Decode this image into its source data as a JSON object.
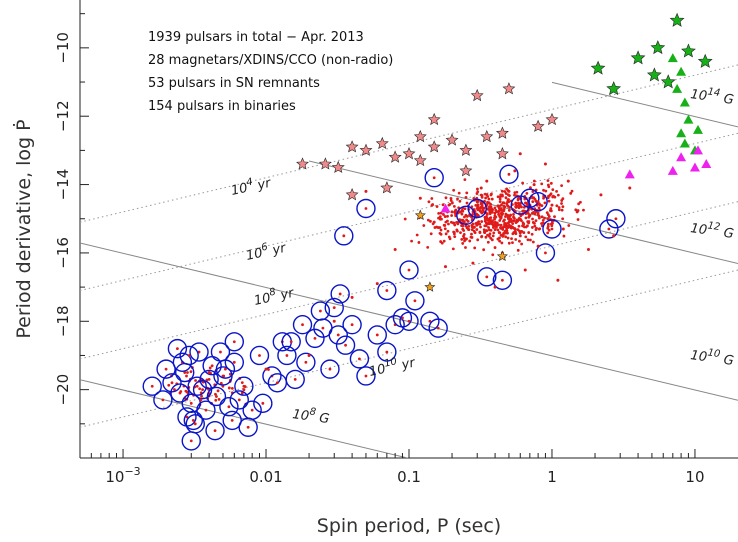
{
  "chart_data": {
    "type": "scatter",
    "title": "",
    "xlabel": "Spin period,  P (sec)",
    "ylabel": "Period derivative, log Ṗ",
    "x_scale": "log",
    "xlim": [
      0.0005,
      20
    ],
    "ylim": [
      -22,
      -8.6
    ],
    "x_ticks": [
      {
        "value": 0.001,
        "base": "10",
        "exp": "−3"
      },
      {
        "value": 0.01,
        "label": "0.01"
      },
      {
        "value": 0.1,
        "label": "0.1"
      },
      {
        "value": 1,
        "label": "1"
      },
      {
        "value": 10,
        "label": "10"
      }
    ],
    "y_ticks": [
      -10,
      -12,
      -14,
      -16,
      -18,
      -20
    ],
    "y_tick_labels": [
      "−10",
      "−12",
      "−14",
      "−16",
      "−18",
      "−20"
    ],
    "grid": false,
    "annotations": [
      "1939 pulsars in total − Apr. 2013",
      "28 magnetars/XDINS/CCO (non-radio)",
      "53 pulsars in SN remnants",
      "154 pulsars in binaries"
    ],
    "age_lines": [
      {
        "base": "10",
        "exp": "4",
        "unit": "yr",
        "log_age_yr": 4
      },
      {
        "base": "10",
        "exp": "6",
        "unit": "yr",
        "log_age_yr": 6
      },
      {
        "base": "10",
        "exp": "8",
        "unit": "yr",
        "log_age_yr": 8
      },
      {
        "base": "10",
        "exp": "10",
        "unit": "yr",
        "log_age_yr": 10
      }
    ],
    "field_lines": [
      {
        "base": "10",
        "exp": "14",
        "unit": "G",
        "log_B": 14
      },
      {
        "base": "10",
        "exp": "12",
        "unit": "G",
        "log_B": 12
      },
      {
        "base": "10",
        "exp": "10",
        "unit": "G",
        "log_B": 10
      },
      {
        "base": "10",
        "exp": "8",
        "unit": "G",
        "log_B": 8
      }
    ],
    "series": [
      {
        "marker": "circle",
        "points": [
          [
            0.0022,
            -19.8
          ],
          [
            0.0025,
            -20.1
          ],
          [
            0.0027,
            -19.5
          ],
          [
            0.003,
            -20.4
          ],
          [
            0.0033,
            -19.9
          ],
          [
            0.0036,
            -20.0
          ],
          [
            0.004,
            -19.7
          ],
          [
            0.0045,
            -20.2
          ],
          [
            0.005,
            -19.6
          ],
          [
            0.0055,
            -20.5
          ],
          [
            0.006,
            -19.2
          ],
          [
            0.007,
            -19.9
          ],
          [
            0.0028,
            -20.8
          ],
          [
            0.0032,
            -21.0
          ],
          [
            0.0038,
            -20.6
          ],
          [
            0.0042,
            -19.3
          ],
          [
            0.0048,
            -18.9
          ],
          [
            0.0052,
            -19.4
          ],
          [
            0.0065,
            -20.3
          ],
          [
            0.008,
            -20.6
          ],
          [
            0.0026,
            -19.2
          ],
          [
            0.0034,
            -18.9
          ],
          [
            0.0016,
            -19.9
          ],
          [
            0.0019,
            -20.3
          ],
          [
            0.002,
            -19.4
          ],
          [
            0.0024,
            -18.8
          ],
          [
            0.0029,
            -19.0
          ],
          [
            0.0031,
            -20.9
          ],
          [
            0.0044,
            -21.2
          ],
          [
            0.0058,
            -20.9
          ],
          [
            0.009,
            -19.0
          ],
          [
            0.011,
            -19.6
          ],
          [
            0.013,
            -18.6
          ],
          [
            0.016,
            -19.7
          ],
          [
            0.019,
            -19.2
          ],
          [
            0.022,
            -18.5
          ],
          [
            0.025,
            -18.2
          ],
          [
            0.028,
            -19.4
          ],
          [
            0.03,
            -17.6
          ],
          [
            0.033,
            -17.2
          ],
          [
            0.036,
            -18.7
          ],
          [
            0.04,
            -18.1
          ],
          [
            0.045,
            -19.1
          ],
          [
            0.05,
            -19.6
          ],
          [
            0.06,
            -18.4
          ],
          [
            0.07,
            -18.9
          ],
          [
            0.08,
            -18.1
          ],
          [
            0.09,
            -17.9
          ],
          [
            0.1,
            -18.0
          ],
          [
            0.11,
            -17.4
          ],
          [
            0.14,
            -18.0
          ],
          [
            0.16,
            -18.2
          ],
          [
            0.035,
            -15.5
          ],
          [
            0.05,
            -14.7
          ],
          [
            0.1,
            -16.5
          ],
          [
            0.07,
            -17.1
          ],
          [
            0.15,
            -13.8
          ],
          [
            0.25,
            -14.9
          ],
          [
            0.35,
            -16.7
          ],
          [
            0.45,
            -16.8
          ],
          [
            0.6,
            -14.6
          ],
          [
            0.7,
            -14.4
          ],
          [
            0.9,
            -16.0
          ],
          [
            1.0,
            -15.3
          ],
          [
            0.5,
            -13.7
          ],
          [
            2.5,
            -15.3
          ],
          [
            2.8,
            -15.0
          ],
          [
            0.3,
            -14.7
          ],
          [
            0.8,
            -14.5
          ],
          [
            0.015,
            -18.6
          ],
          [
            0.018,
            -18.1
          ],
          [
            0.024,
            -17.7
          ],
          [
            0.032,
            -18.4
          ],
          [
            0.012,
            -19.8
          ],
          [
            0.014,
            -19.0
          ],
          [
            0.006,
            -18.6
          ],
          [
            0.0095,
            -20.4
          ],
          [
            0.0075,
            -21.1
          ],
          [
            0.003,
            -21.5
          ]
        ]
      },
      {
        "marker": "dot",
        "points": [
          [
            0.2,
            -14.8
          ],
          [
            0.3,
            -14.5
          ],
          [
            0.4,
            -15.2
          ],
          [
            0.5,
            -14.2
          ],
          [
            0.6,
            -15.5
          ],
          [
            0.7,
            -14.9
          ],
          [
            0.8,
            -15.8
          ],
          [
            1.0,
            -14.6
          ],
          [
            1.2,
            -15.3
          ],
          [
            1.5,
            -14.8
          ],
          [
            0.25,
            -15.6
          ],
          [
            0.35,
            -13.9
          ],
          [
            0.45,
            -16.0
          ],
          [
            0.55,
            -13.6
          ],
          [
            0.9,
            -13.4
          ],
          [
            1.8,
            -15.9
          ],
          [
            2.2,
            -14.3
          ],
          [
            0.15,
            -15.1
          ],
          [
            0.28,
            -16.3
          ],
          [
            0.65,
            -16.5
          ],
          [
            1.1,
            -16.8
          ],
          [
            0.4,
            -17.0
          ],
          [
            0.32,
            -14.1
          ],
          [
            0.75,
            -14.0
          ],
          [
            0.12,
            -14.4
          ],
          [
            0.08,
            -15.9
          ],
          [
            0.06,
            -16.9
          ],
          [
            0.05,
            -14.2
          ],
          [
            0.04,
            -17.3
          ],
          [
            0.03,
            -18.0
          ],
          [
            0.02,
            -19.0
          ],
          [
            0.01,
            -19.4
          ],
          [
            0.007,
            -20.0
          ],
          [
            0.004,
            -19.5
          ],
          [
            0.0035,
            -20.3
          ],
          [
            0.6,
            -13.1
          ],
          [
            1.3,
            -13.9
          ],
          [
            2.7,
            -15.5
          ],
          [
            3.5,
            -14.1
          ],
          [
            0.18,
            -16.4
          ]
        ]
      },
      {
        "marker": "star-pink",
        "points": [
          [
            0.018,
            -13.4
          ],
          [
            0.026,
            -13.4
          ],
          [
            0.032,
            -13.5
          ],
          [
            0.04,
            -12.9
          ],
          [
            0.05,
            -13.0
          ],
          [
            0.065,
            -12.8
          ],
          [
            0.08,
            -13.2
          ],
          [
            0.1,
            -13.1
          ],
          [
            0.12,
            -13.3
          ],
          [
            0.15,
            -12.9
          ],
          [
            0.2,
            -12.7
          ],
          [
            0.25,
            -13.0
          ],
          [
            0.3,
            -11.4
          ],
          [
            0.35,
            -12.6
          ],
          [
            0.45,
            -13.1
          ],
          [
            0.5,
            -11.2
          ],
          [
            0.8,
            -12.3
          ],
          [
            1.0,
            -12.1
          ],
          [
            0.15,
            -12.1
          ],
          [
            0.07,
            -14.1
          ],
          [
            0.04,
            -14.3
          ],
          [
            0.25,
            -13.6
          ],
          [
            0.12,
            -12.6
          ],
          [
            0.45,
            -12.5
          ]
        ]
      },
      {
        "marker": "star-orange",
        "points": [
          [
            0.12,
            -14.9
          ],
          [
            0.45,
            -16.1
          ],
          [
            0.14,
            -17.0
          ]
        ]
      },
      {
        "marker": "star-green",
        "points": [
          [
            2.1,
            -10.6
          ],
          [
            2.7,
            -11.2
          ],
          [
            4.0,
            -10.3
          ],
          [
            5.5,
            -10.0
          ],
          [
            6.5,
            -11.0
          ],
          [
            7.5,
            -9.2
          ],
          [
            9.0,
            -10.1
          ],
          [
            11.8,
            -10.4
          ],
          [
            5.2,
            -10.8
          ]
        ]
      },
      {
        "marker": "triangle-green",
        "points": [
          [
            7.0,
            -10.3
          ],
          [
            8.0,
            -10.7
          ],
          [
            7.5,
            -11.2
          ],
          [
            8.5,
            -11.6
          ],
          [
            10.5,
            -12.4
          ],
          [
            8.0,
            -12.5
          ],
          [
            8.5,
            -12.8
          ],
          [
            10.0,
            -13.0
          ],
          [
            9.0,
            -12.1
          ]
        ]
      },
      {
        "marker": "triangle-magenta",
        "points": [
          [
            3.5,
            -13.7
          ],
          [
            7.0,
            -13.6
          ],
          [
            8.0,
            -13.2
          ],
          [
            10.5,
            -13.0
          ],
          [
            12.0,
            -13.4
          ],
          [
            10.0,
            -13.5
          ],
          [
            0.18,
            -14.7
          ]
        ]
      }
    ],
    "colors": {
      "circle": "#0a14c8",
      "dot": "#e01a1a",
      "star_pink": "#f08a8a",
      "star_orange": "#f0a020",
      "star_green": "#18b018",
      "triangle_green": "#18b018",
      "triangle_magenta": "#ee22ee",
      "line": "#888888",
      "dotted": "#999999"
    }
  }
}
